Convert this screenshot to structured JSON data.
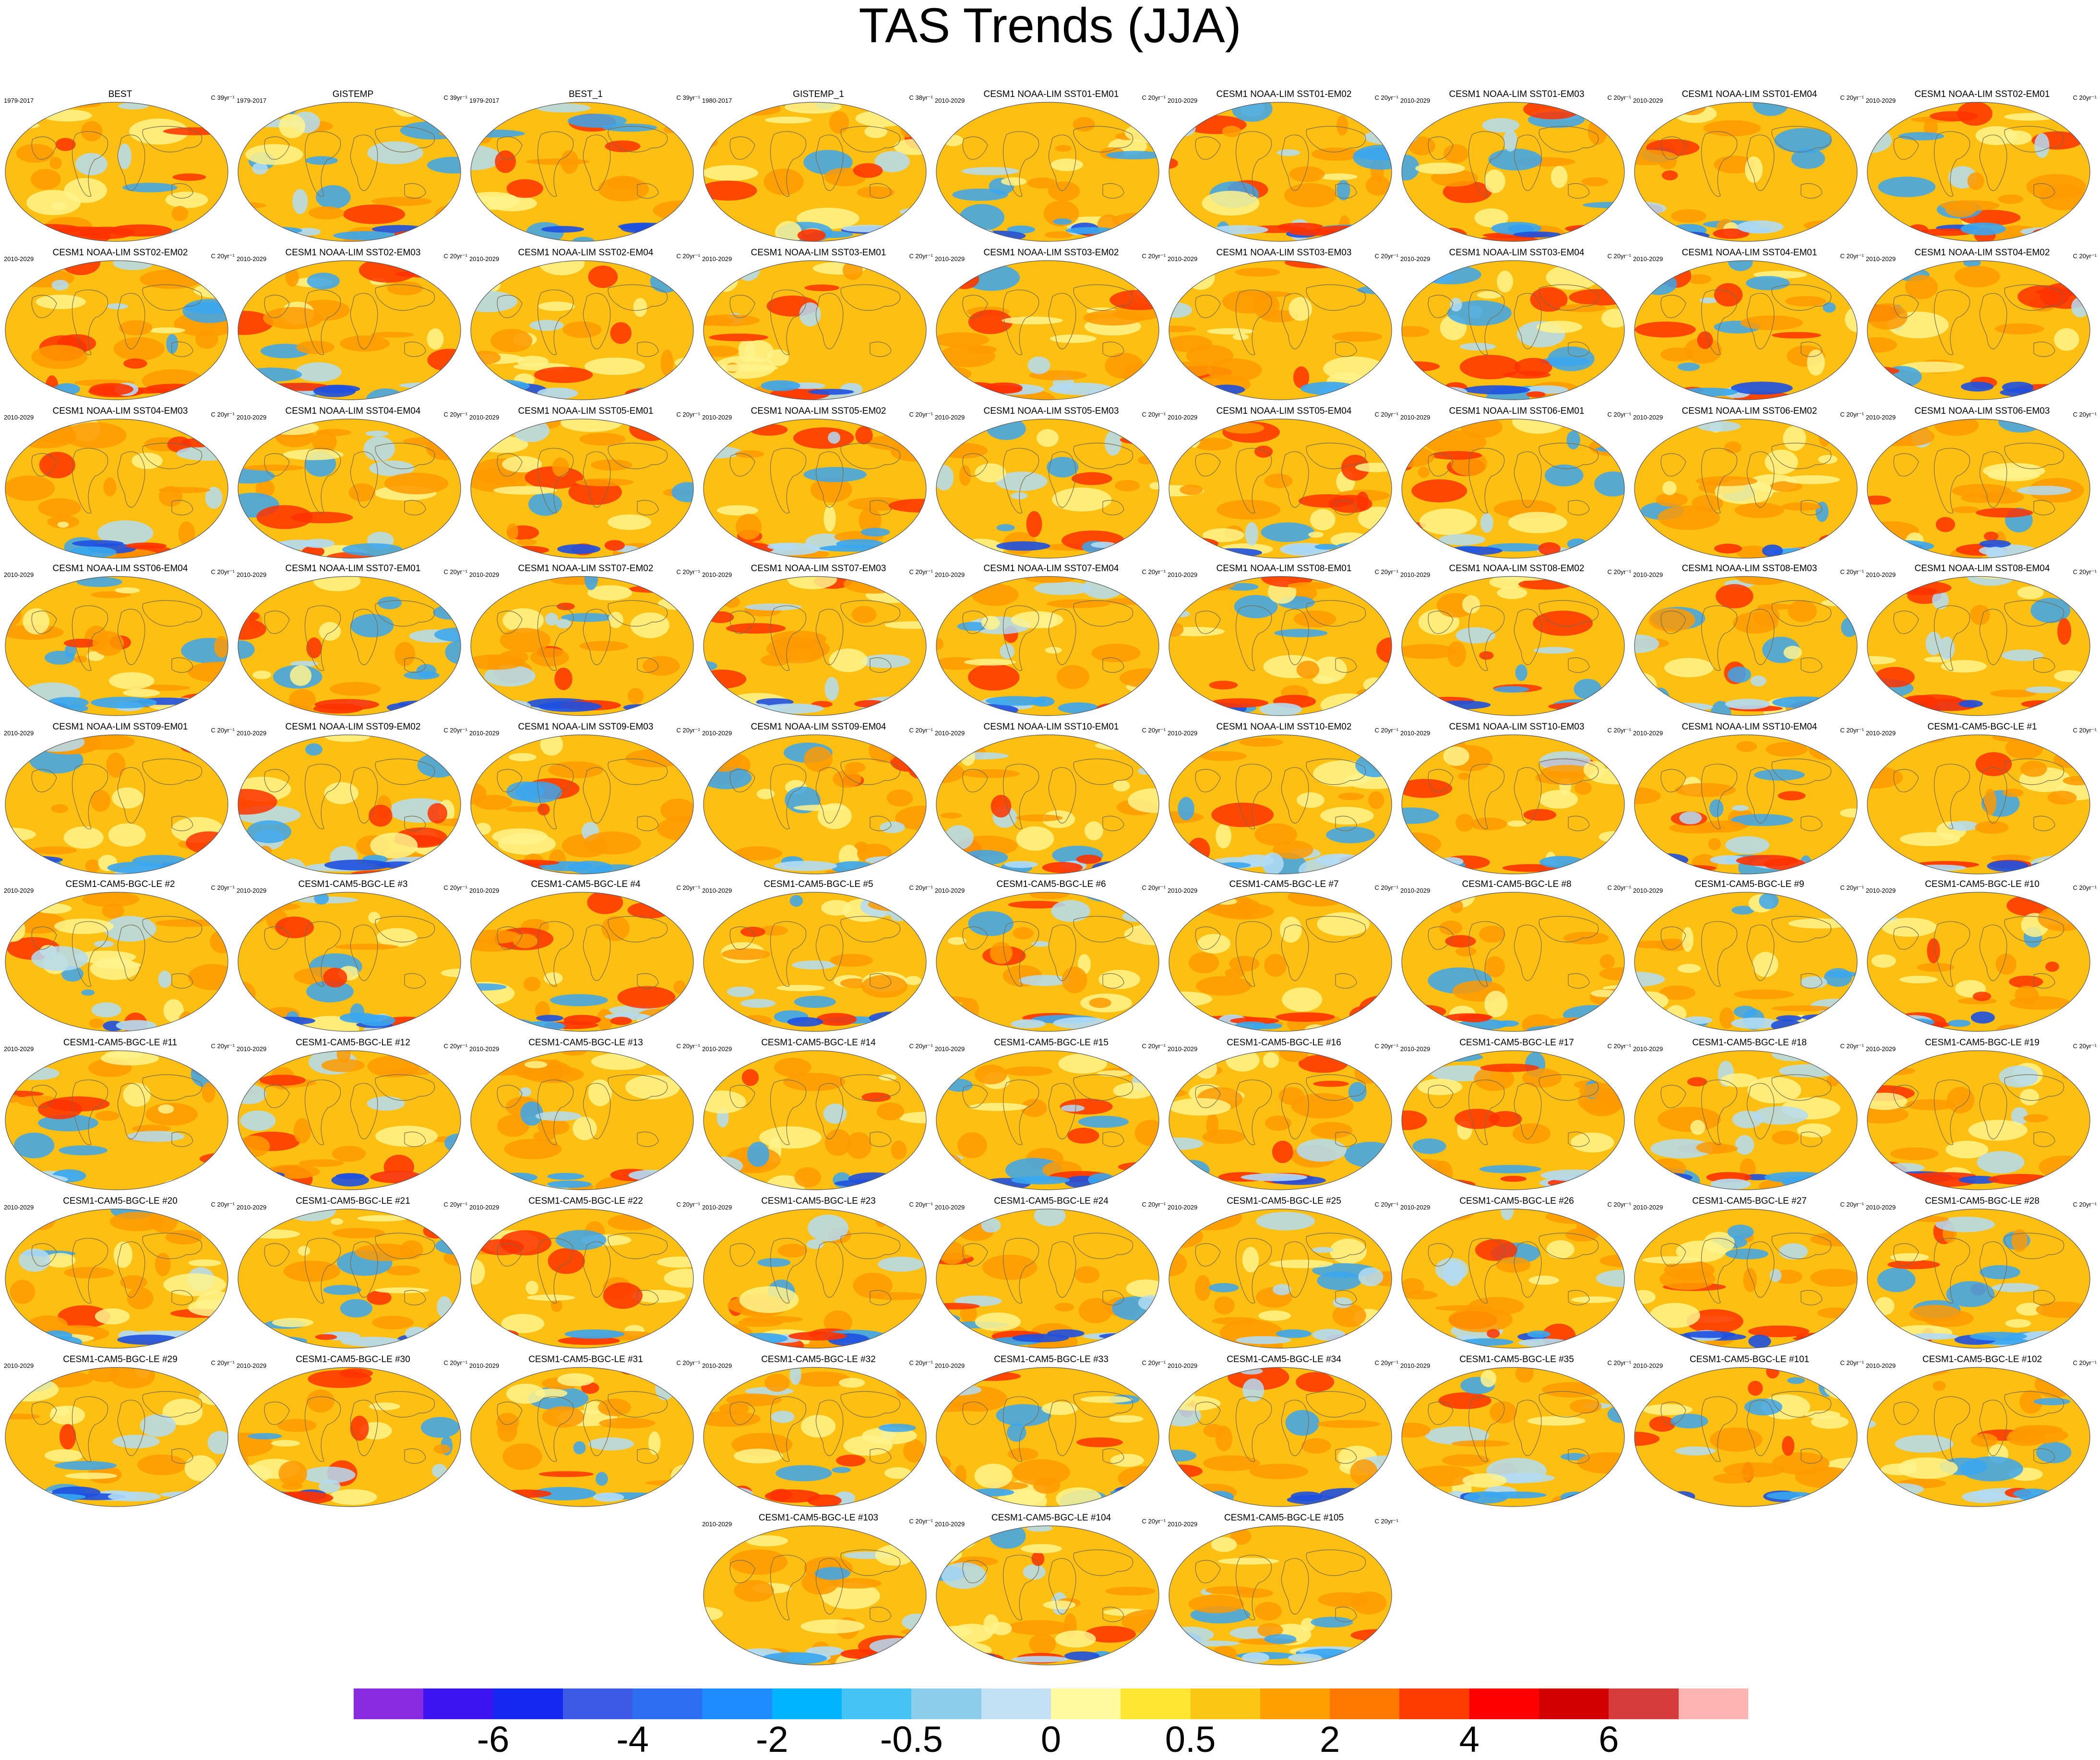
{
  "title": "TAS Trends (JJA)",
  "colors": {
    "ocean_base": "#fdbf11",
    "warm": "#fe9a00",
    "hot": "#fe3200",
    "cool": "#fff38c",
    "cold": "#b3dcf5",
    "colder": "#39a6f0",
    "coldest": "#1e50e0",
    "coast": "#7a6a4a"
  },
  "colorbar": {
    "colors": [
      "#8a2be2",
      "#3c14f0",
      "#1428f0",
      "#3c5ae6",
      "#2d6ef0",
      "#1e8cff",
      "#00b4ff",
      "#46c3f5",
      "#8ccdeb",
      "#c3e1f5",
      "#fffaa0",
      "#ffe632",
      "#fac814",
      "#ffa000",
      "#ff7800",
      "#ff3c00",
      "#ff0000",
      "#d20000",
      "#d73c3c",
      "#ffb4b4"
    ],
    "tick_labels": [
      "-6",
      "-4",
      "-2",
      "-0.5",
      "0",
      "0.5",
      "2",
      "4",
      "6"
    ]
  },
  "panels": [
    {
      "title": "BEST",
      "period": "1979-2017",
      "units": "C 39yr⁻¹"
    },
    {
      "title": "GISTEMP",
      "period": "1979-2017",
      "units": "C 39yr⁻¹"
    },
    {
      "title": "BEST_1",
      "period": "1979-2017",
      "units": "C 39yr⁻¹"
    },
    {
      "title": "GISTEMP_1",
      "period": "1980-2017",
      "units": "C 38yr⁻¹"
    },
    {
      "title": "CESM1 NOAA-LIM SST01-EM01",
      "period": "2010-2029",
      "units": "C 20yr⁻¹"
    },
    {
      "title": "CESM1 NOAA-LIM SST01-EM02",
      "period": "2010-2029",
      "units": "C 20yr⁻¹"
    },
    {
      "title": "CESM1 NOAA-LIM SST01-EM03",
      "period": "2010-2029",
      "units": "C 20yr⁻¹"
    },
    {
      "title": "CESM1 NOAA-LIM SST01-EM04",
      "period": "2010-2029",
      "units": "C 20yr⁻¹"
    },
    {
      "title": "CESM1 NOAA-LIM SST02-EM01",
      "period": "2010-2029",
      "units": "C 20yr⁻¹"
    },
    {
      "title": "CESM1 NOAA-LIM SST02-EM02",
      "period": "2010-2029",
      "units": "C 20yr⁻¹"
    },
    {
      "title": "CESM1 NOAA-LIM SST02-EM03",
      "period": "2010-2029",
      "units": "C 20yr⁻¹"
    },
    {
      "title": "CESM1 NOAA-LIM SST02-EM04",
      "period": "2010-2029",
      "units": "C 20yr⁻¹"
    },
    {
      "title": "CESM1 NOAA-LIM SST03-EM01",
      "period": "2010-2029",
      "units": "C 20yr⁻¹"
    },
    {
      "title": "CESM1 NOAA-LIM SST03-EM02",
      "period": "2010-2029",
      "units": "C 20yr⁻¹"
    },
    {
      "title": "CESM1 NOAA-LIM SST03-EM03",
      "period": "2010-2029",
      "units": "C 20yr⁻¹"
    },
    {
      "title": "CESM1 NOAA-LIM SST03-EM04",
      "period": "2010-2029",
      "units": "C 20yr⁻¹"
    },
    {
      "title": "CESM1 NOAA-LIM SST04-EM01",
      "period": "2010-2029",
      "units": "C 20yr⁻¹"
    },
    {
      "title": "CESM1 NOAA-LIM SST04-EM02",
      "period": "2010-2029",
      "units": "C 20yr⁻¹"
    },
    {
      "title": "CESM1 NOAA-LIM SST04-EM03",
      "period": "2010-2029",
      "units": "C 20yr⁻¹"
    },
    {
      "title": "CESM1 NOAA-LIM SST04-EM04",
      "period": "2010-2029",
      "units": "C 20yr⁻¹"
    },
    {
      "title": "CESM1 NOAA-LIM SST05-EM01",
      "period": "2010-2029",
      "units": "C 20yr⁻¹"
    },
    {
      "title": "CESM1 NOAA-LIM SST05-EM02",
      "period": "2010-2029",
      "units": "C 20yr⁻¹"
    },
    {
      "title": "CESM1 NOAA-LIM SST05-EM03",
      "period": "2010-2029",
      "units": "C 20yr⁻¹"
    },
    {
      "title": "CESM1 NOAA-LIM SST05-EM04",
      "period": "2010-2029",
      "units": "C 20yr⁻¹"
    },
    {
      "title": "CESM1 NOAA-LIM SST06-EM01",
      "period": "2010-2029",
      "units": "C 20yr⁻¹"
    },
    {
      "title": "CESM1 NOAA-LIM SST06-EM02",
      "period": "2010-2029",
      "units": "C 20yr⁻¹"
    },
    {
      "title": "CESM1 NOAA-LIM SST06-EM03",
      "period": "2010-2029",
      "units": "C 20yr⁻¹"
    },
    {
      "title": "CESM1 NOAA-LIM SST06-EM04",
      "period": "2010-2029",
      "units": "C 20yr⁻¹"
    },
    {
      "title": "CESM1 NOAA-LIM SST07-EM01",
      "period": "2010-2029",
      "units": "C 20yr⁻¹"
    },
    {
      "title": "CESM1 NOAA-LIM SST07-EM02",
      "period": "2010-2029",
      "units": "C 20yr⁻¹"
    },
    {
      "title": "CESM1 NOAA-LIM SST07-EM03",
      "period": "2010-2029",
      "units": "C 20yr⁻¹"
    },
    {
      "title": "CESM1 NOAA-LIM SST07-EM04",
      "period": "2010-2029",
      "units": "C 20yr⁻¹"
    },
    {
      "title": "CESM1 NOAA-LIM SST08-EM01",
      "period": "2010-2029",
      "units": "C 20yr⁻¹"
    },
    {
      "title": "CESM1 NOAA-LIM SST08-EM02",
      "period": "2010-2029",
      "units": "C 20yr⁻¹"
    },
    {
      "title": "CESM1 NOAA-LIM SST08-EM03",
      "period": "2010-2029",
      "units": "C 20yr⁻¹"
    },
    {
      "title": "CESM1 NOAA-LIM SST08-EM04",
      "period": "2010-2029",
      "units": "C 20yr⁻¹"
    },
    {
      "title": "CESM1 NOAA-LIM SST09-EM01",
      "period": "2010-2029",
      "units": "C 20yr⁻¹"
    },
    {
      "title": "CESM1 NOAA-LIM SST09-EM02",
      "period": "2010-2029",
      "units": "C 20yr⁻¹"
    },
    {
      "title": "CESM1 NOAA-LIM SST09-EM03",
      "period": "2010-2029",
      "units": "C 20yr⁻¹"
    },
    {
      "title": "CESM1 NOAA-LIM SST09-EM04",
      "period": "2010-2029",
      "units": "C 20yr⁻¹"
    },
    {
      "title": "CESM1 NOAA-LIM SST10-EM01",
      "period": "2010-2029",
      "units": "C 20yr⁻¹"
    },
    {
      "title": "CESM1 NOAA-LIM SST10-EM02",
      "period": "2010-2029",
      "units": "C 20yr⁻¹"
    },
    {
      "title": "CESM1 NOAA-LIM SST10-EM03",
      "period": "2010-2029",
      "units": "C 20yr⁻¹"
    },
    {
      "title": "CESM1 NOAA-LIM SST10-EM04",
      "period": "2010-2029",
      "units": "C 20yr⁻¹"
    },
    {
      "title": "CESM1-CAM5-BGC-LE #1",
      "period": "2010-2029",
      "units": "C 20yr⁻¹"
    },
    {
      "title": "CESM1-CAM5-BGC-LE #2",
      "period": "2010-2029",
      "units": "C 20yr⁻¹"
    },
    {
      "title": "CESM1-CAM5-BGC-LE #3",
      "period": "2010-2029",
      "units": "C 20yr⁻¹"
    },
    {
      "title": "CESM1-CAM5-BGC-LE #4",
      "period": "2010-2029",
      "units": "C 20yr⁻¹"
    },
    {
      "title": "CESM1-CAM5-BGC-LE #5",
      "period": "2010-2029",
      "units": "C 20yr⁻¹"
    },
    {
      "title": "CESM1-CAM5-BGC-LE #6",
      "period": "2010-2029",
      "units": "C 20yr⁻¹"
    },
    {
      "title": "CESM1-CAM5-BGC-LE #7",
      "period": "2010-2029",
      "units": "C 20yr⁻¹"
    },
    {
      "title": "CESM1-CAM5-BGC-LE #8",
      "period": "2010-2029",
      "units": "C 20yr⁻¹"
    },
    {
      "title": "CESM1-CAM5-BGC-LE #9",
      "period": "2010-2029",
      "units": "C 20yr⁻¹"
    },
    {
      "title": "CESM1-CAM5-BGC-LE #10",
      "period": "2010-2029",
      "units": "C 20yr⁻¹"
    },
    {
      "title": "CESM1-CAM5-BGC-LE #11",
      "period": "2010-2029",
      "units": "C 20yr⁻¹"
    },
    {
      "title": "CESM1-CAM5-BGC-LE #12",
      "period": "2010-2029",
      "units": "C 20yr⁻¹"
    },
    {
      "title": "CESM1-CAM5-BGC-LE #13",
      "period": "2010-2029",
      "units": "C 20yr⁻¹"
    },
    {
      "title": "CESM1-CAM5-BGC-LE #14",
      "period": "2010-2029",
      "units": "C 20yr⁻¹"
    },
    {
      "title": "CESM1-CAM5-BGC-LE #15",
      "period": "2010-2029",
      "units": "C 20yr⁻¹"
    },
    {
      "title": "CESM1-CAM5-BGC-LE #16",
      "period": "2010-2029",
      "units": "C 20yr⁻¹"
    },
    {
      "title": "CESM1-CAM5-BGC-LE #17",
      "period": "2010-2029",
      "units": "C 20yr⁻¹"
    },
    {
      "title": "CESM1-CAM5-BGC-LE #18",
      "period": "2010-2029",
      "units": "C 20yr⁻¹"
    },
    {
      "title": "CESM1-CAM5-BGC-LE #19",
      "period": "2010-2029",
      "units": "C 20yr⁻¹"
    },
    {
      "title": "CESM1-CAM5-BGC-LE #20",
      "period": "2010-2029",
      "units": "C 20yr⁻¹"
    },
    {
      "title": "CESM1-CAM5-BGC-LE #21",
      "period": "2010-2029",
      "units": "C 20yr⁻¹"
    },
    {
      "title": "CESM1-CAM5-BGC-LE #22",
      "period": "2010-2029",
      "units": "C 20yr⁻¹"
    },
    {
      "title": "CESM1-CAM5-BGC-LE #23",
      "period": "2010-2029",
      "units": "C 20yr⁻¹"
    },
    {
      "title": "CESM1-CAM5-BGC-LE #24",
      "period": "2010-2029",
      "units": "C 20yr⁻¹"
    },
    {
      "title": "CESM1-CAM5-BGC-LE #25",
      "period": "2010-2029",
      "units": "C 20yr⁻¹"
    },
    {
      "title": "CESM1-CAM5-BGC-LE #26",
      "period": "2010-2029",
      "units": "C 20yr⁻¹"
    },
    {
      "title": "CESM1-CAM5-BGC-LE #27",
      "period": "2010-2029",
      "units": "C 20yr⁻¹"
    },
    {
      "title": "CESM1-CAM5-BGC-LE #28",
      "period": "2010-2029",
      "units": "C 20yr⁻¹"
    },
    {
      "title": "CESM1-CAM5-BGC-LE #29",
      "period": "2010-2029",
      "units": "C 20yr⁻¹"
    },
    {
      "title": "CESM1-CAM5-BGC-LE #30",
      "period": "2010-2029",
      "units": "C 20yr⁻¹"
    },
    {
      "title": "CESM1-CAM5-BGC-LE #31",
      "period": "2010-2029",
      "units": "C 20yr⁻¹"
    },
    {
      "title": "CESM1-CAM5-BGC-LE #32",
      "period": "2010-2029",
      "units": "C 20yr⁻¹"
    },
    {
      "title": "CESM1-CAM5-BGC-LE #33",
      "period": "2010-2029",
      "units": "C 20yr⁻¹"
    },
    {
      "title": "CESM1-CAM5-BGC-LE #34",
      "period": "2010-2029",
      "units": "C 20yr⁻¹"
    },
    {
      "title": "CESM1-CAM5-BGC-LE #35",
      "period": "2010-2029",
      "units": "C 20yr⁻¹"
    },
    {
      "title": "CESM1-CAM5-BGC-LE #101",
      "period": "2010-2029",
      "units": "C 20yr⁻¹"
    },
    {
      "title": "CESM1-CAM5-BGC-LE #102",
      "period": "2010-2029",
      "units": "C 20yr⁻¹"
    },
    {
      "title": "CESM1-CAM5-BGC-LE #103",
      "period": "2010-2029",
      "units": "C 20yr⁻¹"
    },
    {
      "title": "CESM1-CAM5-BGC-LE #104",
      "period": "2010-2029",
      "units": "C 20yr⁻¹"
    },
    {
      "title": "CESM1-CAM5-BGC-LE #105",
      "period": "2010-2029",
      "units": "C 20yr⁻¹"
    }
  ],
  "chart_data": {
    "type": "heatmap",
    "title": "TAS Trends (JJA)",
    "panel_count": 84,
    "colorbar_ticks": [
      -6,
      -4,
      -2,
      -0.5,
      0,
      0.5,
      2,
      4,
      6
    ]
  }
}
